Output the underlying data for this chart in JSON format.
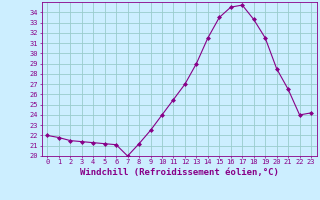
{
  "x": [
    0,
    1,
    2,
    3,
    4,
    5,
    6,
    7,
    8,
    9,
    10,
    11,
    12,
    13,
    14,
    15,
    16,
    17,
    18,
    19,
    20,
    21,
    22,
    23
  ],
  "y": [
    22.0,
    21.8,
    21.5,
    21.4,
    21.3,
    21.2,
    21.1,
    20.0,
    21.2,
    22.5,
    24.0,
    25.5,
    27.0,
    29.0,
    31.5,
    33.5,
    34.5,
    34.7,
    33.3,
    31.5,
    28.5,
    26.5,
    24.0,
    24.2
  ],
  "line_color": "#880088",
  "marker": "D",
  "marker_size": 2.0,
  "bg_color": "#cceeff",
  "grid_color": "#99cccc",
  "xlabel": "Windchill (Refroidissement éolien,°C)",
  "xlabel_color": "#880088",
  "tick_color": "#880088",
  "ylim": [
    20,
    35
  ],
  "xlim": [
    -0.5,
    23.5
  ],
  "yticks": [
    20,
    21,
    22,
    23,
    24,
    25,
    26,
    27,
    28,
    29,
    30,
    31,
    32,
    33,
    34
  ],
  "xticks": [
    0,
    1,
    2,
    3,
    4,
    5,
    6,
    7,
    8,
    9,
    10,
    11,
    12,
    13,
    14,
    15,
    16,
    17,
    18,
    19,
    20,
    21,
    22,
    23
  ],
  "ytick_labels": [
    "20",
    "21",
    "22",
    "23",
    "24",
    "25",
    "26",
    "27",
    "28",
    "29",
    "30",
    "31",
    "32",
    "33",
    "34"
  ],
  "xtick_labels": [
    "0",
    "1",
    "2",
    "3",
    "4",
    "5",
    "6",
    "7",
    "8",
    "9",
    "10",
    "11",
    "12",
    "13",
    "14",
    "15",
    "16",
    "17",
    "18",
    "19",
    "20",
    "21",
    "22",
    "23"
  ],
  "tick_fontsize": 5.0,
  "xlabel_fontsize": 6.5
}
